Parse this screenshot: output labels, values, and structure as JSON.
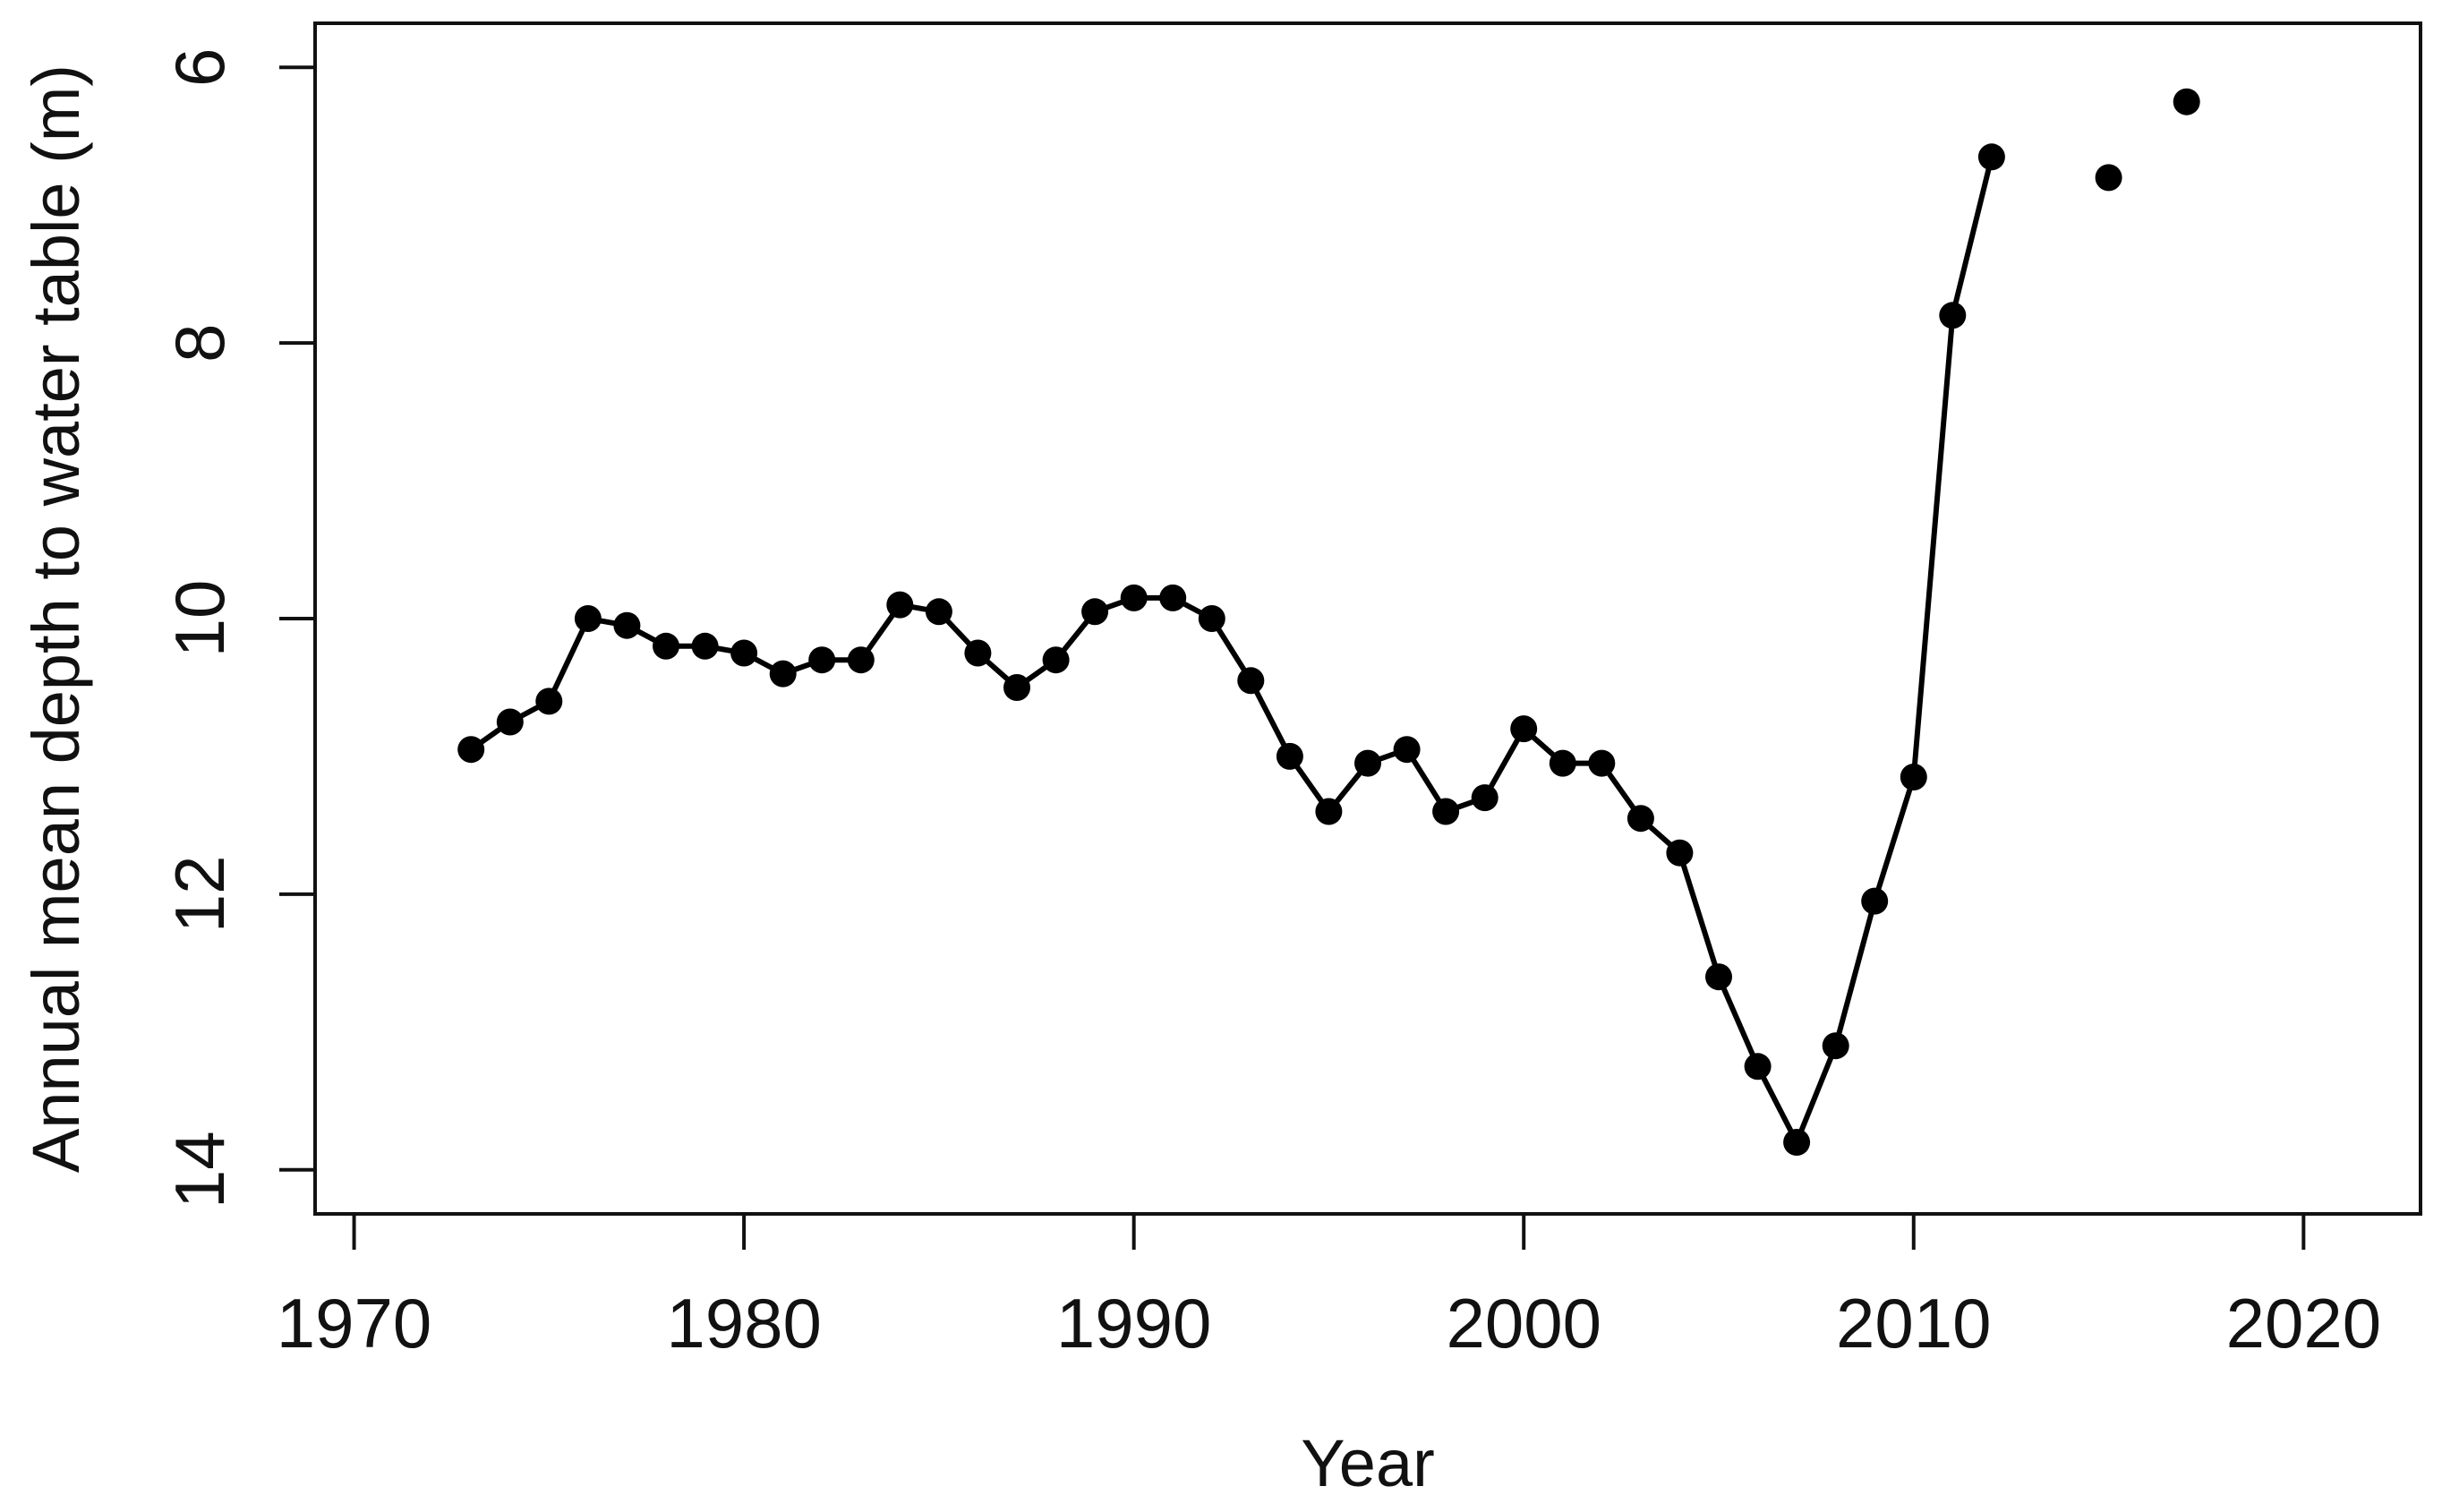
{
  "figure": {
    "background": "#ffffff",
    "frame_color": "#111111",
    "data_color": "#000000",
    "text_color": "#111111"
  },
  "chart_data": {
    "type": "line",
    "title": "",
    "xlabel": "Year",
    "ylabel": "Annual mean depth to water table (m)",
    "x_ticks": [
      1970,
      1980,
      1990,
      2000,
      2010,
      2020
    ],
    "y_ticks": [
      6,
      8,
      10,
      12,
      14
    ],
    "xlim": [
      1969,
      2023
    ],
    "ylim": [
      5.68,
      14.32
    ],
    "y_axis_reversed": true,
    "grid": false,
    "legend": "none",
    "marker": "filled-circle",
    "series": [
      {
        "name": "annual mean depth (connected line with points)",
        "style": "line+markers",
        "x": [
          1973,
          1974,
          1975,
          1976,
          1977,
          1978,
          1979,
          1980,
          1981,
          1982,
          1983,
          1984,
          1985,
          1986,
          1987,
          1988,
          1989,
          1990,
          1991,
          1992,
          1993,
          1994,
          1995,
          1996,
          1997,
          1998,
          1999,
          2000,
          2001,
          2002,
          2003,
          2004,
          2005,
          2006,
          2007,
          2008,
          2009,
          2010,
          2011,
          2012
        ],
        "values": [
          10.95,
          10.75,
          10.6,
          10.0,
          10.05,
          10.2,
          10.2,
          10.25,
          10.4,
          10.3,
          10.3,
          9.9,
          9.95,
          10.25,
          10.5,
          10.3,
          9.95,
          9.85,
          9.85,
          10.0,
          10.45,
          11.0,
          11.4,
          11.05,
          10.95,
          11.4,
          11.3,
          10.8,
          11.05,
          11.05,
          11.45,
          11.7,
          12.6,
          13.25,
          13.8,
          13.1,
          12.05,
          11.15,
          7.8,
          6.65
        ]
      },
      {
        "name": "annual mean depth (isolated points, no line)",
        "style": "markers",
        "x": [
          2015,
          2017
        ],
        "values": [
          6.8,
          6.25
        ]
      }
    ]
  }
}
